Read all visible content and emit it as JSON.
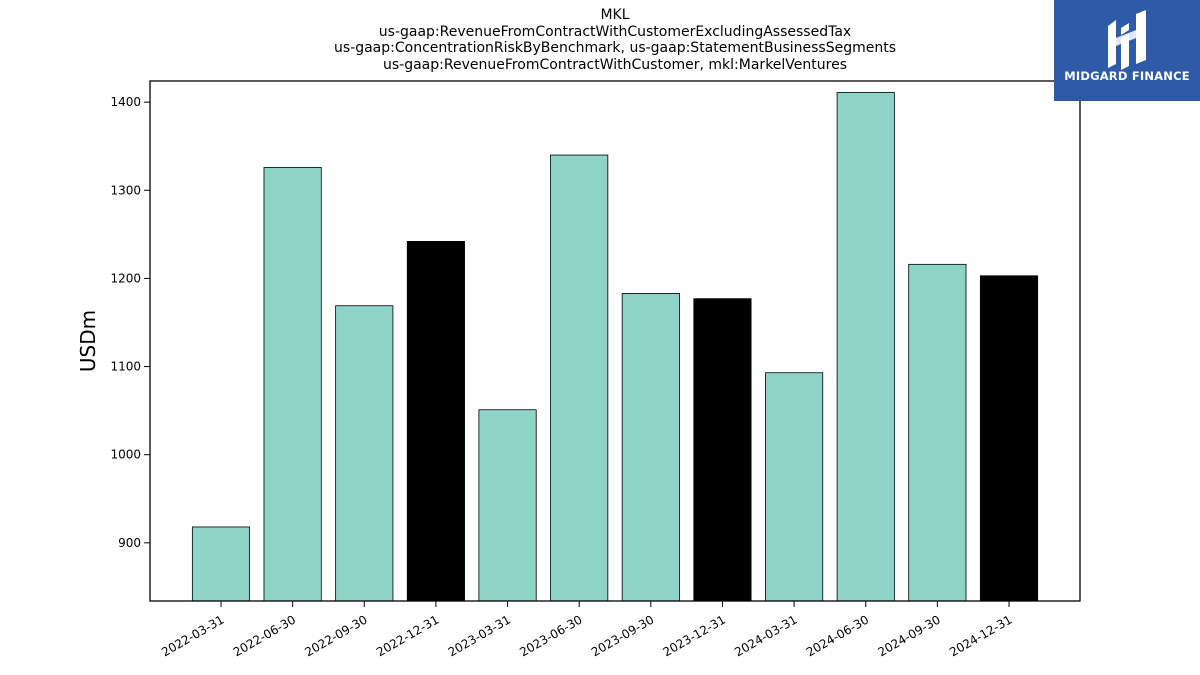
{
  "chart_data": {
    "type": "bar",
    "title": [
      "MKL",
      "us-gaap:RevenueFromContractWithCustomerExcludingAssessedTax",
      "us-gaap:ConcentrationRiskByBenchmark, us-gaap:StatementBusinessSegments",
      "us-gaap:RevenueFromContractWithCustomer, mkl:MarkelVentures"
    ],
    "xlabel": "",
    "ylabel": "USDm",
    "categories": [
      "2022-03-31",
      "2022-06-30",
      "2022-09-30",
      "2022-12-31",
      "2023-03-31",
      "2023-06-30",
      "2023-09-30",
      "2023-12-31",
      "2024-03-31",
      "2024-06-30",
      "2024-09-30",
      "2024-12-31"
    ],
    "values": [
      918,
      1326,
      1169,
      1242,
      1051,
      1340,
      1183,
      1177,
      1093,
      1411,
      1216,
      1203
    ],
    "bar_colors": [
      "#8dd3c7",
      "#8dd3c7",
      "#8dd3c7",
      "#000000",
      "#8dd3c7",
      "#8dd3c7",
      "#8dd3c7",
      "#000000",
      "#8dd3c7",
      "#8dd3c7",
      "#8dd3c7",
      "#000000"
    ],
    "yticks": [
      900,
      1000,
      1100,
      1200,
      1300,
      1400
    ],
    "ylim": [
      834,
      1424
    ],
    "grid": false,
    "legend": "none"
  },
  "logo": {
    "text": "MIDGARD FINANCE",
    "color": "#2e5aa8"
  }
}
